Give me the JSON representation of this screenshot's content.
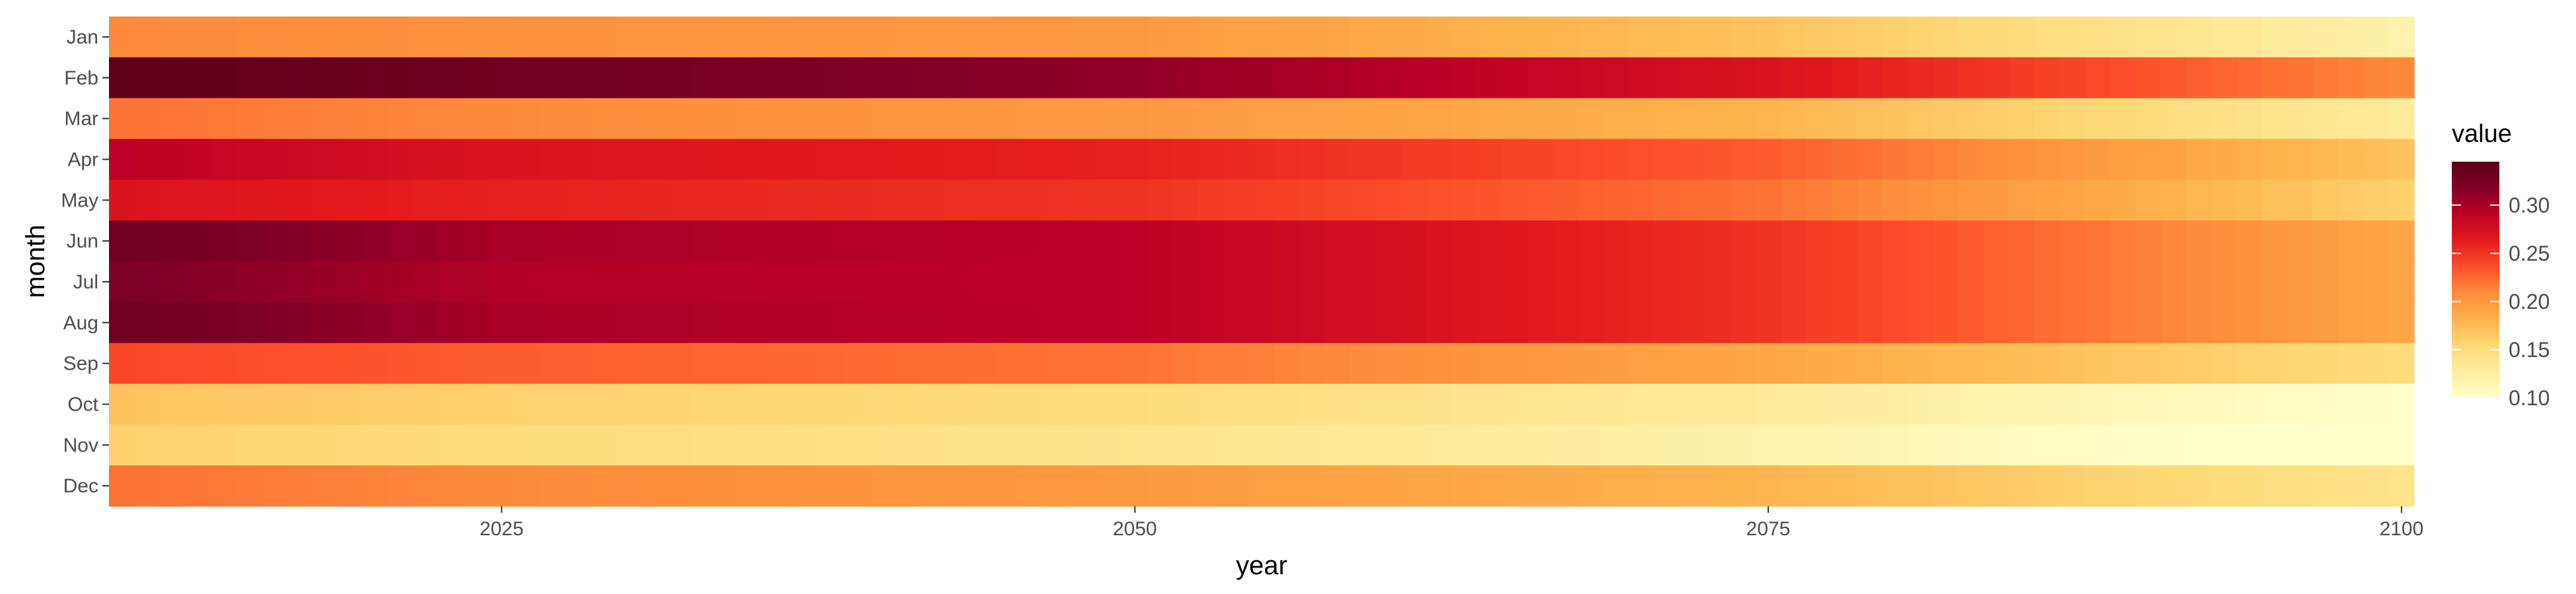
{
  "chart_data": {
    "type": "heatmap",
    "title": "",
    "xlabel": "year",
    "ylabel": "month",
    "x_start": 2010,
    "x_end": 2100,
    "xlim": [
      2009.5,
      2100.5
    ],
    "x_ticks": [
      2025,
      2050,
      2075,
      2100
    ],
    "x_tick_labels": [
      "2025",
      "2050",
      "2075",
      "2100"
    ],
    "months": [
      "Jan",
      "Feb",
      "Mar",
      "Apr",
      "May",
      "Jun",
      "Jul",
      "Aug",
      "Sep",
      "Oct",
      "Nov",
      "Dec"
    ],
    "value_keyframes": {
      "years": [
        2010,
        2025,
        2050,
        2075,
        2100
      ],
      "Jan": [
        0.21,
        0.205,
        0.2,
        0.17,
        0.12
      ],
      "Feb": [
        0.34,
        0.33,
        0.31,
        0.27,
        0.21
      ],
      "Mar": [
        0.22,
        0.21,
        0.2,
        0.18,
        0.13
      ],
      "Apr": [
        0.29,
        0.27,
        0.26,
        0.23,
        0.17
      ],
      "May": [
        0.27,
        0.26,
        0.25,
        0.22,
        0.16
      ],
      "Jun": [
        0.33,
        0.3,
        0.29,
        0.25,
        0.19
      ],
      "Jul": [
        0.32,
        0.295,
        0.29,
        0.25,
        0.19
      ],
      "Aug": [
        0.33,
        0.3,
        0.29,
        0.25,
        0.19
      ],
      "Sep": [
        0.24,
        0.23,
        0.22,
        0.19,
        0.15
      ],
      "Oct": [
        0.17,
        0.16,
        0.15,
        0.13,
        0.1
      ],
      "Nov": [
        0.16,
        0.15,
        0.14,
        0.12,
        0.09
      ],
      "Dec": [
        0.22,
        0.21,
        0.2,
        0.18,
        0.14
      ]
    },
    "legend": {
      "title": "value",
      "placement": "right",
      "range": [
        0.1,
        0.345
      ],
      "ticks": [
        0.1,
        0.15,
        0.2,
        0.25,
        0.3
      ],
      "tick_labels": [
        "0.10",
        "0.15",
        "0.20",
        "0.25",
        "0.30"
      ]
    },
    "colorscale": [
      "#ffffcc",
      "#ffeda0",
      "#fed976",
      "#feb24c",
      "#fd8d3c",
      "#fc4e2a",
      "#e31a1c",
      "#bd0026",
      "#800026",
      "#5a0016"
    ],
    "grid": false,
    "background": "#ebebeb"
  }
}
